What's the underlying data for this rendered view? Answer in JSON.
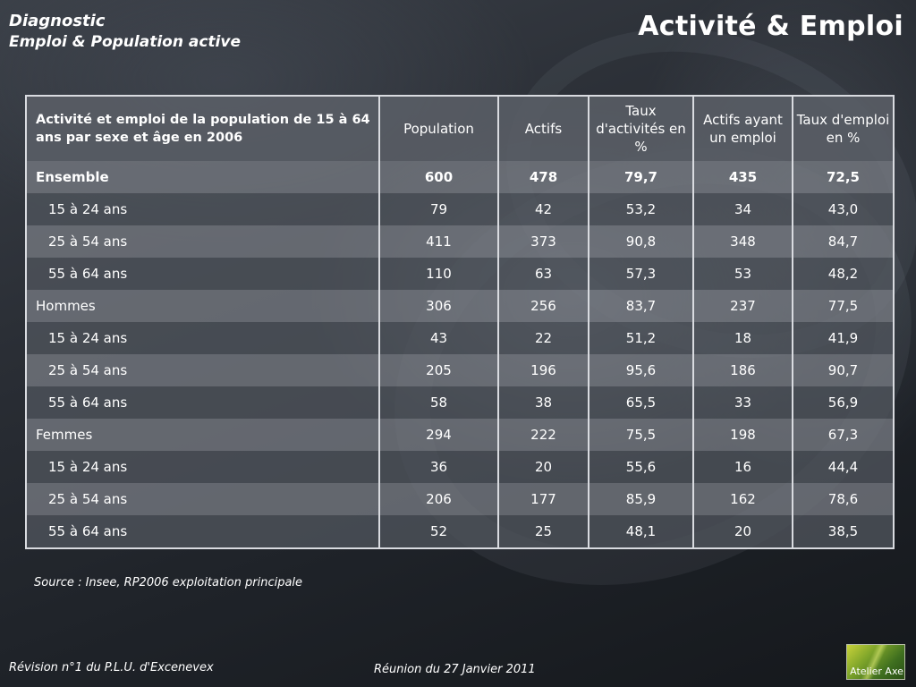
{
  "header": {
    "line1": "Diagnostic",
    "line2": "Emploi & Population active",
    "title": "Activité & Emploi"
  },
  "table": {
    "columns": [
      "Activité et emploi de la population de 15 à 64 ans par sexe et âge en 2006",
      "Population",
      "Actifs",
      "Taux d'activités en %",
      "Actifs ayant un emploi",
      "Taux d'emploi en %"
    ],
    "rows": [
      {
        "label": "Ensemble",
        "values": [
          "600",
          "478",
          "79,7",
          "435",
          "72,5"
        ]
      },
      {
        "label": "15 à 24 ans",
        "values": [
          "79",
          "42",
          "53,2",
          "34",
          "43,0"
        ]
      },
      {
        "label": "25 à 54 ans",
        "values": [
          "411",
          "373",
          "90,8",
          "348",
          "84,7"
        ]
      },
      {
        "label": "55 à 64 ans",
        "values": [
          "110",
          "63",
          "57,3",
          "53",
          "48,2"
        ]
      },
      {
        "label": "Hommes",
        "values": [
          "306",
          "256",
          "83,7",
          "237",
          "77,5"
        ]
      },
      {
        "label": "15 à 24 ans",
        "values": [
          "43",
          "22",
          "51,2",
          "18",
          "41,9"
        ]
      },
      {
        "label": "25 à 54 ans",
        "values": [
          "205",
          "196",
          "95,6",
          "186",
          "90,7"
        ]
      },
      {
        "label": "55 à 64 ans",
        "values": [
          "58",
          "38",
          "65,5",
          "33",
          "56,9"
        ]
      },
      {
        "label": "Femmes",
        "values": [
          "294",
          "222",
          "75,5",
          "198",
          "67,3"
        ]
      },
      {
        "label": "15 à 24 ans",
        "values": [
          "36",
          "20",
          "55,6",
          "16",
          "44,4"
        ]
      },
      {
        "label": "25 à 54 ans",
        "values": [
          "206",
          "177",
          "85,9",
          "162",
          "78,6"
        ]
      },
      {
        "label": "55 à 64 ans",
        "values": [
          "52",
          "25",
          "48,1",
          "20",
          "38,5"
        ]
      }
    ]
  },
  "source": "Source : Insee, RP2006 exploitation principale",
  "footer": {
    "left": "Révision n°1 du P.L.U. d'Excenevex",
    "center": "Réunion du 27 Janvier 2011",
    "logo_text": "Atelier Axe"
  },
  "colors": {
    "background": "#2a2e35",
    "header_cell": "#5a5e66",
    "row_light": "#767a82",
    "row_dark": "#50545c",
    "border": "#d9dbe0",
    "logo_green": "#7fa52a"
  }
}
